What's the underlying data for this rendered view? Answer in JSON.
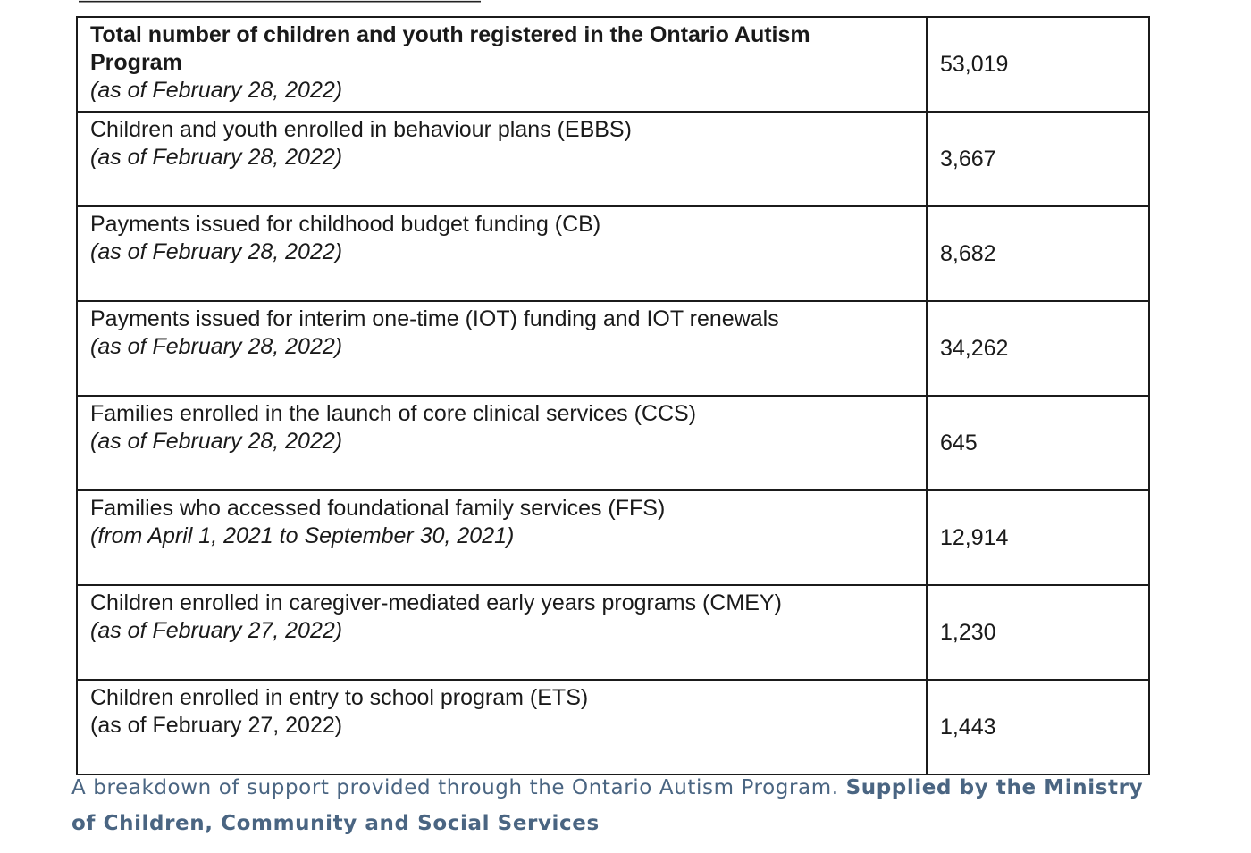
{
  "table": {
    "rows": [
      {
        "label_lines": [
          "Total number of children and youth registered in the Ontario Autism",
          "Program"
        ],
        "label_bold": true,
        "date": "(as of February 28, 2022)",
        "date_italic": true,
        "value": "53,019"
      },
      {
        "label_lines": [
          "Children and youth enrolled in behaviour plans (EBBS)"
        ],
        "label_bold": false,
        "date": "(as of February 28, 2022)",
        "date_italic": true,
        "value": "3,667"
      },
      {
        "label_lines": [
          "Payments issued for childhood budget funding (CB)"
        ],
        "label_bold": false,
        "date": "(as of February 28, 2022)",
        "date_italic": true,
        "value": "8,682"
      },
      {
        "label_lines": [
          "Payments issued for interim one-time (IOT) funding and IOT renewals"
        ],
        "label_bold": false,
        "date": "(as of February 28, 2022)",
        "date_italic": true,
        "value": "34,262"
      },
      {
        "label_lines": [
          "Families enrolled in the launch of core clinical services (CCS)"
        ],
        "label_bold": false,
        "date": "(as of February 28, 2022)",
        "date_italic": true,
        "value": "645"
      },
      {
        "label_lines": [
          "Families who accessed foundational family services (FFS)"
        ],
        "label_bold": false,
        "date": "(from April 1, 2021 to September 30, 2021)",
        "date_italic": true,
        "value": "12,914"
      },
      {
        "label_lines": [
          "Children enrolled in caregiver-mediated early years programs (CMEY)"
        ],
        "label_bold": false,
        "date": "(as of February 27, 2022)",
        "date_italic": true,
        "value": "1,230"
      },
      {
        "label_lines": [
          "Children enrolled in entry to school program (ETS)"
        ],
        "label_bold": false,
        "date": "(as of February 27, 2022)",
        "date_italic": false,
        "value": "1,443"
      }
    ]
  },
  "caption": {
    "text": "A breakdown of support provided through the Ontario Autism Program. ",
    "credit": "Supplied by the Ministry of Children, Community and Social Services"
  }
}
